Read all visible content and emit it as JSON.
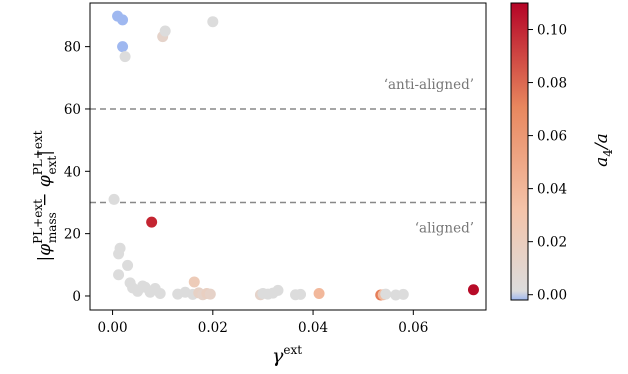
{
  "chart_data": {
    "type": "scatter",
    "xlabel": "γ",
    "xlabel_sup": "ext",
    "ylabel_parts": {
      "bar": "|",
      "phi": "φ",
      "sup": "PL+ext",
      "sub_mass": "mass",
      "minus": " − ",
      "sub_ext": "ext"
    },
    "xlim": [
      -0.0045,
      0.0745
    ],
    "ylim": [
      -4.5,
      94
    ],
    "xticks": [
      0.0,
      0.02,
      0.04,
      0.06
    ],
    "xtick_labels": [
      "0.00",
      "0.02",
      "0.04",
      "0.06"
    ],
    "yticks": [
      0,
      20,
      40,
      60,
      80
    ],
    "ytick_labels": [
      "0",
      "20",
      "40",
      "60",
      "80"
    ],
    "hlines": [
      {
        "y": 60,
        "label": "‘anti-aligned’",
        "style": "dashed",
        "color": "#888888"
      },
      {
        "y": 30,
        "label": "‘aligned’",
        "style": "dashed",
        "color": "#888888"
      }
    ],
    "grid": false,
    "colorbar": {
      "label_main": "a",
      "label_sub": "4",
      "label_rest": "/a",
      "range": [
        -0.002,
        0.11
      ],
      "ticks": [
        0.0,
        0.02,
        0.04,
        0.06,
        0.08,
        0.1
      ],
      "tick_labels": [
        "0.00",
        "0.02",
        "0.04",
        "0.06",
        "0.08",
        "0.10"
      ],
      "colormap": "coolwarm-like (blue → light grey → red)",
      "colormap_stops": [
        "#9fb8f0",
        "#dcdcdc",
        "#f4c4aa",
        "#e8875e",
        "#c8232b"
      ]
    },
    "points": [
      {
        "x": 0.001,
        "y": 89.8,
        "c": -0.002
      },
      {
        "x": 0.002,
        "y": 88.6,
        "c": -0.002
      },
      {
        "x": 0.002,
        "y": 80.0,
        "c": -0.002
      },
      {
        "x": 0.0025,
        "y": 76.8,
        "c": 0.005
      },
      {
        "x": 0.01,
        "y": 83.2,
        "c": 0.016
      },
      {
        "x": 0.0105,
        "y": 85.0,
        "c": 0.003
      },
      {
        "x": 0.02,
        "y": 88.0,
        "c": 0.003
      },
      {
        "x": 0.0003,
        "y": 31.0,
        "c": 0.002
      },
      {
        "x": 0.0078,
        "y": 23.7,
        "c": 0.1
      },
      {
        "x": 0.0015,
        "y": 15.3,
        "c": 0.003
      },
      {
        "x": 0.0012,
        "y": 13.5,
        "c": 0.003
      },
      {
        "x": 0.003,
        "y": 9.8,
        "c": 0.003
      },
      {
        "x": 0.0012,
        "y": 6.8,
        "c": 0.003
      },
      {
        "x": 0.0035,
        "y": 4.2,
        "c": 0.003
      },
      {
        "x": 0.004,
        "y": 2.6,
        "c": 0.003
      },
      {
        "x": 0.005,
        "y": 1.5,
        "c": 0.003
      },
      {
        "x": 0.006,
        "y": 3.2,
        "c": 0.003
      },
      {
        "x": 0.0065,
        "y": 2.8,
        "c": 0.003
      },
      {
        "x": 0.0075,
        "y": 1.2,
        "c": 0.003
      },
      {
        "x": 0.0085,
        "y": 2.4,
        "c": 0.003
      },
      {
        "x": 0.0095,
        "y": 0.8,
        "c": 0.003
      },
      {
        "x": 0.013,
        "y": 0.6,
        "c": 0.003
      },
      {
        "x": 0.0145,
        "y": 1.2,
        "c": 0.003
      },
      {
        "x": 0.016,
        "y": 0.5,
        "c": 0.003
      },
      {
        "x": 0.0163,
        "y": 4.5,
        "c": 0.024
      },
      {
        "x": 0.0172,
        "y": 1.0,
        "c": 0.018
      },
      {
        "x": 0.018,
        "y": 0.4,
        "c": 0.016
      },
      {
        "x": 0.0188,
        "y": 0.8,
        "c": 0.02
      },
      {
        "x": 0.0195,
        "y": 0.6,
        "c": 0.017
      },
      {
        "x": 0.0295,
        "y": 0.4,
        "c": 0.016
      },
      {
        "x": 0.03,
        "y": 0.8,
        "c": 0.003
      },
      {
        "x": 0.031,
        "y": 0.6,
        "c": 0.003
      },
      {
        "x": 0.032,
        "y": 0.9,
        "c": 0.003
      },
      {
        "x": 0.033,
        "y": 1.8,
        "c": 0.003
      },
      {
        "x": 0.0365,
        "y": 0.4,
        "c": 0.003
      },
      {
        "x": 0.0375,
        "y": 0.5,
        "c": 0.003
      },
      {
        "x": 0.0412,
        "y": 0.8,
        "c": 0.036
      },
      {
        "x": 0.0535,
        "y": 0.3,
        "c": 0.064
      },
      {
        "x": 0.054,
        "y": 0.4,
        "c": 0.034
      },
      {
        "x": 0.0545,
        "y": 0.6,
        "c": 0.003
      },
      {
        "x": 0.0565,
        "y": 0.3,
        "c": 0.003
      },
      {
        "x": 0.058,
        "y": 0.5,
        "c": 0.003
      },
      {
        "x": 0.072,
        "y": 2.0,
        "c": 0.108
      }
    ]
  }
}
